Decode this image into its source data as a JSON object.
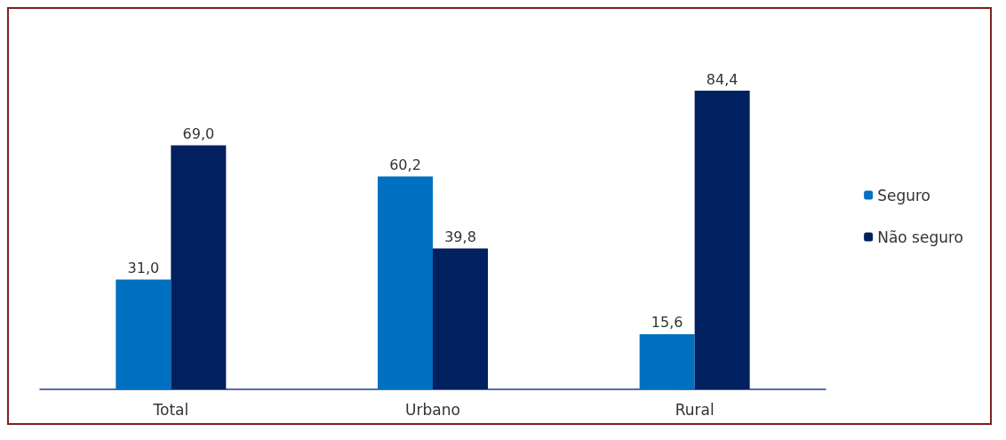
{
  "chart_data": {
    "type": "bar",
    "categories": [
      "Total",
      "Urbano",
      "Rural"
    ],
    "series": [
      {
        "name": "Seguro",
        "color": "#0070c0",
        "values": [
          31.0,
          60.2,
          15.6
        ],
        "value_labels": [
          "31,0",
          "60,2",
          "15,6"
        ]
      },
      {
        "name": "Não seguro",
        "color": "#002060",
        "values": [
          69.0,
          39.8,
          84.4
        ],
        "value_labels": [
          "69,0",
          "39,8",
          "84,4"
        ]
      }
    ],
    "legend": "right",
    "grid": false
  }
}
